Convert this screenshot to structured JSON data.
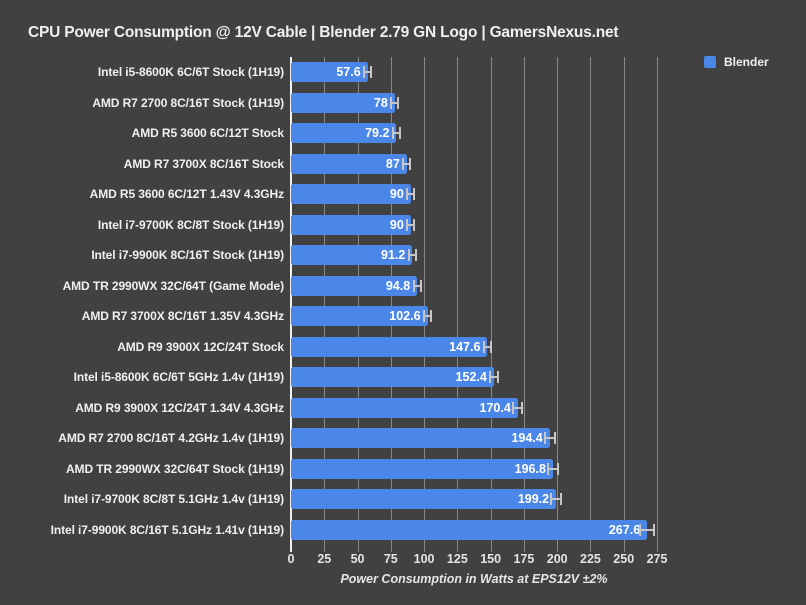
{
  "chart_data": {
    "type": "bar",
    "orientation": "horizontal",
    "title": "CPU Power Consumption @ 12V Cable | Blender 2.79 GN Logo | GamersNexus.net",
    "legend": [
      "Blender"
    ],
    "legend_position": "top-right",
    "xlabel": "Power Consumption in Watts at EPS12V ±2%",
    "ylabel": "",
    "xlim": [
      0,
      275
    ],
    "xticks": [
      0,
      25,
      50,
      75,
      100,
      125,
      150,
      175,
      200,
      225,
      250,
      275
    ],
    "grid": true,
    "categories": [
      "Intel i5-8600K 6C/6T Stock (1H19)",
      "AMD R7 2700 8C/16T Stock (1H19)",
      "AMD R5 3600 6C/12T Stock",
      "AMD R7 3700X 8C/16T Stock",
      "AMD R5 3600 6C/12T 1.43V 4.3GHz",
      "Intel i7-9700K 8C/8T Stock (1H19)",
      "Intel i7-9900K 8C/16T Stock (1H19)",
      "AMD TR 2990WX 32C/64T (Game Mode)",
      "AMD R7 3700X 8C/16T 1.35V 4.3GHz",
      "AMD R9 3900X 12C/24T Stock",
      "Intel i5-8600K 6C/6T 5GHz 1.4v (1H19)",
      "AMD R9 3900X 12C/24T 1.34V 4.3GHz",
      "AMD R7 2700 8C/16T 4.2GHz 1.4v (1H19)",
      "AMD TR 2990WX 32C/64T Stock (1H19)",
      "Intel i7-9700K 8C/8T 5.1GHz 1.4v (1H19)",
      "Intel i7-9900K 8C/16T 5.1GHz 1.41v (1H19)"
    ],
    "values": [
      57.6,
      78,
      79.2,
      87,
      90,
      90,
      91.2,
      94.8,
      102.6,
      147.6,
      152.4,
      170.4,
      194.4,
      196.8,
      199.2,
      267.6
    ],
    "value_labels": [
      "57.6",
      "78",
      "79.2",
      "87",
      "90",
      "90",
      "91.2",
      "94.8",
      "102.6",
      "147.6",
      "152.4",
      "170.4",
      "194.4",
      "196.8",
      "199.2",
      "267.6"
    ],
    "error_note": "±2%",
    "colors": {
      "background": "#414141",
      "bar": "#4b87e8",
      "grid": "#878787",
      "zero_axis": "#f2f2f2",
      "text": "#f0f0f0",
      "value_text": "#ffffff",
      "error_bar": "#c6c6c6"
    }
  }
}
